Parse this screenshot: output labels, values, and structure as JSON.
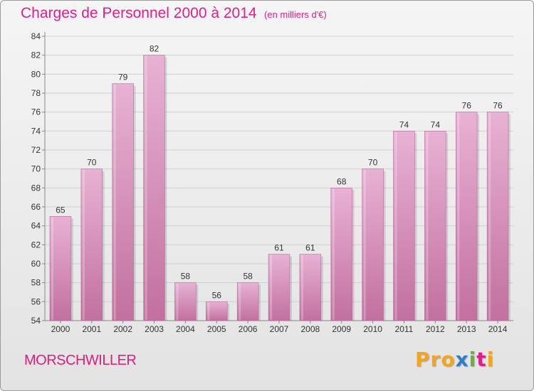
{
  "header": {
    "title": "Charges de Personnel 2000 à 2014",
    "subtitle": "(en milliers d'€)"
  },
  "footer": {
    "commune": "MORSCHWILLER",
    "logo": {
      "part1": "Pro",
      "part2": "x",
      "part3": "i",
      "part4": "t",
      "part5": "i"
    }
  },
  "colors": {
    "bar_light": "#e8b2d4",
    "bar_dark": "#c2709f",
    "title": "#e0208a"
  },
  "chart_data": {
    "type": "bar",
    "title": "Charges de Personnel 2000 à 2014",
    "subtitle": "(en milliers d'€)",
    "categories": [
      "2000",
      "2001",
      "2002",
      "2003",
      "2004",
      "2005",
      "2006",
      "2007",
      "2008",
      "2009",
      "2010",
      "2011",
      "2012",
      "2013",
      "2014"
    ],
    "values": [
      65,
      70,
      79,
      82,
      58,
      56,
      58,
      61,
      61,
      68,
      70,
      74,
      74,
      76,
      76
    ],
    "ylim": [
      54,
      84
    ],
    "yticks": [
      54,
      56,
      58,
      60,
      62,
      64,
      66,
      68,
      70,
      72,
      74,
      76,
      78,
      80,
      82,
      84
    ],
    "grid": true,
    "legend": "none"
  }
}
